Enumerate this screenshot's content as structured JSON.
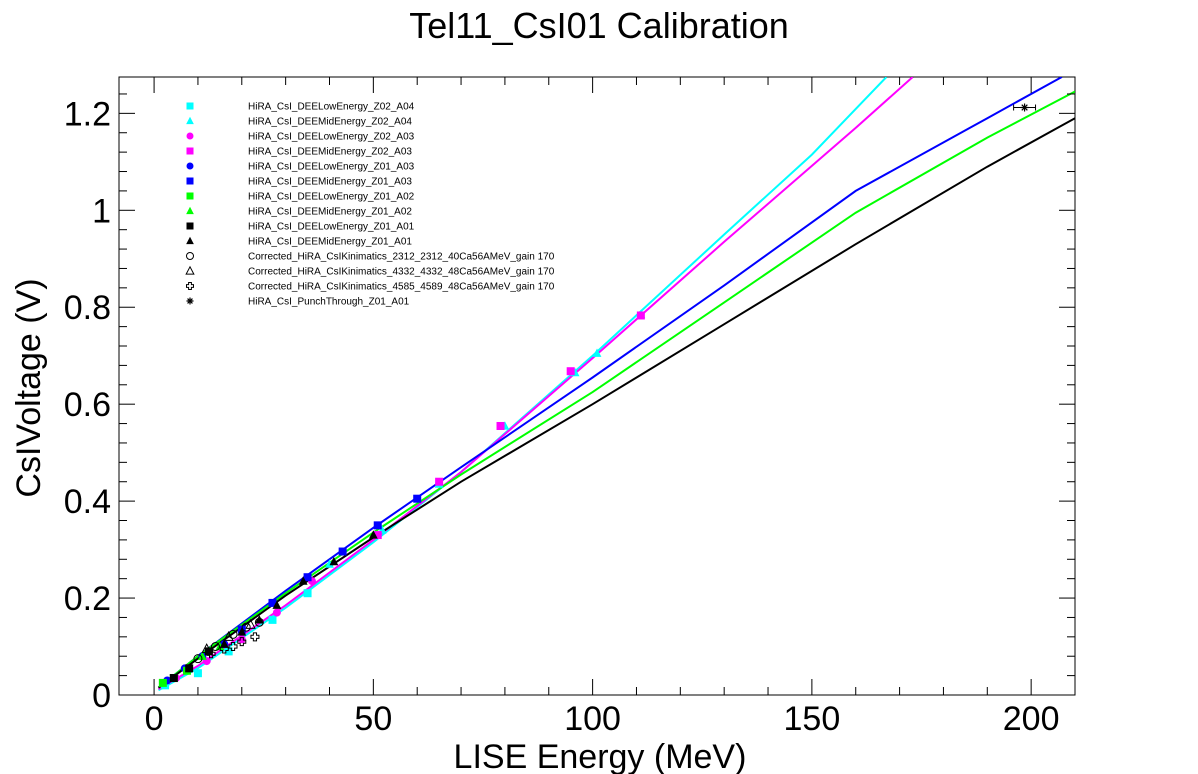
{
  "chart_data": {
    "type": "line",
    "title": "Tel11_CsI01 Calibration",
    "xlabel": "LISE Energy (MeV)",
    "ylabel": "CsIVoltage (V)",
    "xlim": [
      -8,
      210
    ],
    "ylim": [
      0,
      1.275
    ],
    "xticks": [
      0,
      50,
      100,
      150,
      200
    ],
    "yticks": [
      0,
      0.2,
      0.4,
      0.6,
      0.8,
      1,
      1.2
    ],
    "xtick_labels": [
      "0",
      "50",
      "100",
      "150",
      "200"
    ],
    "ytick_labels": [
      "0",
      "0.2",
      "0.4",
      "0.6",
      "0.8",
      "1",
      "1.2"
    ],
    "grid": false,
    "legend_position": "top-left",
    "legend": [
      {
        "label": "HiRA_CsI_DEELowEnergy_Z02_A04",
        "marker": "square",
        "color": "#00ffff"
      },
      {
        "label": "HiRA_CsI_DEEMidEnergy_Z02_A04",
        "marker": "triangle",
        "color": "#00ffff"
      },
      {
        "label": "HiRA_CsI_DEELowEnergy_Z02_A03",
        "marker": "circle",
        "color": "#ff00ff"
      },
      {
        "label": "HiRA_CsI_DEEMidEnergy_Z02_A03",
        "marker": "square",
        "color": "#ff00ff"
      },
      {
        "label": "HiRA_CsI_DEELowEnergy_Z01_A03",
        "marker": "circle",
        "color": "#0000ff"
      },
      {
        "label": "HiRA_CsI_DEEMidEnergy_Z01_A03",
        "marker": "square",
        "color": "#0000ff"
      },
      {
        "label": "HiRA_CsI_DEELowEnergy_Z01_A02",
        "marker": "square",
        "color": "#00ff00"
      },
      {
        "label": "HiRA_CsI_DEEMidEnergy_Z01_A02",
        "marker": "triangle",
        "color": "#00ff00"
      },
      {
        "label": "HiRA_CsI_DEELowEnergy_Z01_A01",
        "marker": "square",
        "color": "#000000"
      },
      {
        "label": "HiRA_CsI_DEEMidEnergy_Z01_A01",
        "marker": "triangle",
        "color": "#000000"
      },
      {
        "label": "Corrected_HiRA_CsIKinimatics_2312_2312_40Ca56AMeV_gain 170",
        "marker": "open-circle",
        "color": "#000000"
      },
      {
        "label": "Corrected_HiRA_CsIKinimatics_4332_4332_48Ca56AMeV_gain 170",
        "marker": "open-triangle",
        "color": "#000000"
      },
      {
        "label": "Corrected_HiRA_CsIKinimatics_4585_4589_48Ca56AMeV_gain 170",
        "marker": "open-cross",
        "color": "#000000"
      },
      {
        "label": "HiRA_CsI_PunchThrough_Z01_A01",
        "marker": "star",
        "color": "#000000"
      }
    ],
    "series": [
      {
        "color": "#00ffff",
        "marker": "square",
        "x": [
          2.5,
          10,
          17,
          27,
          35
        ],
        "y": [
          0.02,
          0.045,
          0.09,
          0.155,
          0.21
        ]
      },
      {
        "color": "#00ffff",
        "marker": "triangle",
        "x": [
          40,
          52,
          65,
          80,
          96,
          101,
          111
        ],
        "y": [
          0.27,
          0.34,
          0.435,
          0.555,
          0.665,
          0.705,
          0.785
        ]
      },
      {
        "color": "#ff00ff",
        "marker": "circle",
        "x": [
          5,
          12,
          20,
          28,
          36
        ],
        "y": [
          0.035,
          0.07,
          0.115,
          0.17,
          0.235
        ]
      },
      {
        "color": "#ff00ff",
        "marker": "square",
        "x": [
          51,
          65,
          79,
          95,
          111
        ],
        "y": [
          0.33,
          0.44,
          0.555,
          0.668,
          0.783
        ]
      },
      {
        "color": "#0000ff",
        "marker": "circle",
        "x": [
          3,
          7,
          11,
          16
        ],
        "y": [
          0.03,
          0.055,
          0.08,
          0.105
        ]
      },
      {
        "color": "#0000ff",
        "marker": "square",
        "x": [
          20,
          27,
          35,
          43,
          51,
          60
        ],
        "y": [
          0.135,
          0.19,
          0.243,
          0.296,
          0.35,
          0.405
        ]
      },
      {
        "color": "#00ff00",
        "marker": "square",
        "x": [
          2,
          4.5,
          7.5
        ],
        "y": [
          0.025,
          0.035,
          0.05
        ]
      },
      {
        "color": "#00ff00",
        "marker": "triangle",
        "x": [
          11,
          15
        ],
        "y": [
          0.08,
          0.1
        ]
      },
      {
        "color": "#000000",
        "marker": "square",
        "x": [
          4.5,
          8,
          12.5
        ],
        "y": [
          0.035,
          0.055,
          0.09
        ]
      },
      {
        "color": "#000000",
        "marker": "triangle",
        "x": [
          16,
          20,
          24,
          28,
          34,
          41,
          50
        ],
        "y": [
          0.105,
          0.13,
          0.155,
          0.185,
          0.235,
          0.275,
          0.33
        ]
      },
      {
        "color": "#000000",
        "marker": "open-circle",
        "x": [
          10,
          14,
          18,
          21,
          24
        ],
        "y": [
          0.075,
          0.1,
          0.125,
          0.14,
          0.15
        ]
      },
      {
        "color": "#000000",
        "marker": "open-triangle",
        "x": [
          12,
          17,
          22
        ],
        "y": [
          0.095,
          0.12,
          0.145
        ]
      },
      {
        "color": "#000000",
        "marker": "open-cross",
        "x": [
          13,
          16,
          18,
          20,
          23
        ],
        "y": [
          0.085,
          0.095,
          0.1,
          0.11,
          0.12
        ]
      },
      {
        "color": "#000000",
        "marker": "star",
        "x": [
          198.5
        ],
        "y": [
          1.212
        ],
        "xerr": [
          2.5
        ]
      }
    ],
    "fit_curves": [
      {
        "color": "#00ffff",
        "x": [
          1,
          10,
          30,
          50,
          70,
          100,
          130,
          150,
          167
        ],
        "y": [
          0.01,
          0.055,
          0.18,
          0.315,
          0.46,
          0.7,
          0.95,
          1.115,
          1.275
        ]
      },
      {
        "color": "#ff00ff",
        "x": [
          1,
          10,
          30,
          50,
          70,
          100,
          130,
          160,
          173
        ],
        "y": [
          0.012,
          0.06,
          0.185,
          0.32,
          0.46,
          0.695,
          0.935,
          1.17,
          1.275
        ]
      },
      {
        "color": "#0000ff",
        "x": [
          1,
          10,
          30,
          50,
          70,
          100,
          130,
          160,
          190,
          207
        ],
        "y": [
          0.015,
          0.08,
          0.215,
          0.345,
          0.47,
          0.655,
          0.845,
          1.04,
          1.19,
          1.275
        ]
      },
      {
        "color": "#00ff00",
        "x": [
          1,
          10,
          30,
          50,
          70,
          100,
          130,
          160,
          190,
          210
        ],
        "y": [
          0.015,
          0.08,
          0.21,
          0.335,
          0.455,
          0.625,
          0.81,
          0.995,
          1.15,
          1.245
        ]
      },
      {
        "color": "#000000",
        "x": [
          1,
          10,
          30,
          50,
          70,
          100,
          130,
          160,
          190,
          210
        ],
        "y": [
          0.015,
          0.075,
          0.205,
          0.325,
          0.44,
          0.6,
          0.765,
          0.93,
          1.09,
          1.19
        ]
      }
    ]
  }
}
